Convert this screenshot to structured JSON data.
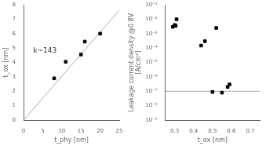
{
  "chart_data": [
    {
      "type": "scatter",
      "xlabel": "t_phy [nm]",
      "ylabel": "t_ox [nm]",
      "annotation": "k~143",
      "series": [
        {
          "type": "line",
          "color": "#aaaaaa",
          "line_style": "solid",
          "x": [
            0,
            25
          ],
          "values": [
            0,
            7.625
          ]
        },
        {
          "type": "scatter",
          "color": "#000000",
          "marker": "square",
          "x": [
            8,
            11,
            15,
            16,
            20
          ],
          "values": [
            2.9,
            4.05,
            4.55,
            5.45,
            6.0
          ]
        }
      ],
      "xlim": [
        0,
        25
      ],
      "ylim": [
        0,
        8
      ],
      "xticks": [
        0,
        5,
        10,
        15,
        20,
        25
      ],
      "yticks": [
        0,
        1,
        2,
        3,
        4,
        5,
        6,
        7,
        8
      ],
      "grid": false
    },
    {
      "type": "scatter",
      "xlabel": "t_ox [nm]",
      "ylabel": "Leakage current density @0 8V\n[A/cm²]",
      "log": "y",
      "series": [
        {
          "type": "line",
          "color": "#aaaaaa",
          "line_style": "solid",
          "x": [
            0.25,
            0.75
          ],
          "values": [
            1e-07,
            1e-07
          ]
        },
        {
          "type": "scatter",
          "color": "#000000",
          "marker": "square",
          "x": [
            0.29,
            0.3,
            0.305,
            0.31,
            0.44,
            0.46,
            0.5,
            0.52,
            0.55,
            0.58,
            0.59
          ],
          "values": [
            0.003,
            0.004,
            0.0035,
            0.01,
            0.00015,
            0.0003,
            9e-08,
            0.0025,
            8e-08,
            2e-07,
            3e-07
          ]
        }
      ],
      "xlim": [
        0.25,
        0.75
      ],
      "ylim": [
        1e-09,
        0.1
      ],
      "xticks": [
        0.3,
        0.4,
        0.5,
        0.6,
        0.7
      ],
      "yticks": [
        {
          "value": 1e-09,
          "label": "10⁻⁹"
        },
        {
          "value": 1e-08,
          "label": "10⁻⁸"
        },
        {
          "value": 1e-07,
          "label": "10⁻⁷"
        },
        {
          "value": 1e-06,
          "label": "10⁻⁶"
        },
        {
          "value": 1e-05,
          "label": "10⁻⁵"
        },
        {
          "value": 0.0001,
          "label": "10⁻⁴"
        },
        {
          "value": 0.001,
          "label": "10⁻³"
        },
        {
          "value": 0.01,
          "label": "10⁻²"
        },
        {
          "value": 0.1,
          "label": "10⁻¹"
        }
      ],
      "grid": false
    }
  ]
}
